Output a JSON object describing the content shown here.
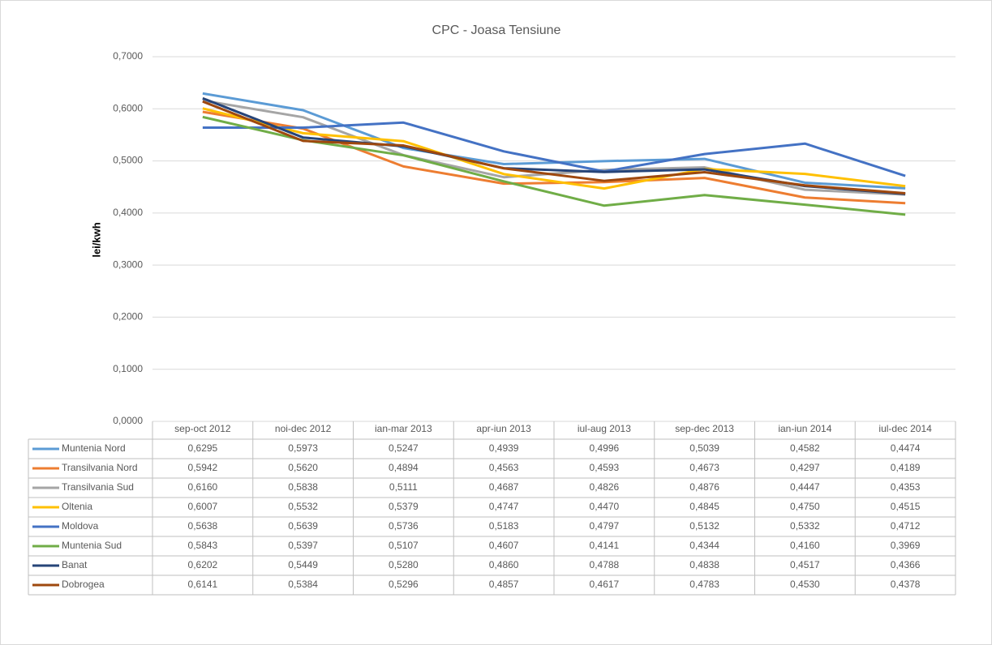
{
  "chart_data": {
    "type": "line",
    "title": "CPC - Joasa Tensiune",
    "y_label": "lei/kwh",
    "categories": [
      "sep-oct 2012",
      "noi-dec 2012",
      "ian-mar 2013",
      "apr-iun 2013",
      "iul-aug 2013",
      "sep-dec 2013",
      "ian-iun 2014",
      "iul-dec 2014"
    ],
    "ylim": [
      0,
      0.7
    ],
    "yticks": [
      {
        "value": 0,
        "label": "0,0000"
      },
      {
        "value": 0.1,
        "label": "0,1000"
      },
      {
        "value": 0.2,
        "label": "0,2000"
      },
      {
        "value": 0.3,
        "label": "0,3000"
      },
      {
        "value": 0.4,
        "label": "0,4000"
      },
      {
        "value": 0.5,
        "label": "0,5000"
      },
      {
        "value": 0.6,
        "label": "0,6000"
      },
      {
        "value": 0.7,
        "label": "0,7000"
      }
    ],
    "grid": true,
    "series": [
      {
        "name": "Muntenia Nord",
        "color": "#5b9bd5",
        "values": [
          0.6295,
          0.5973,
          0.5247,
          0.4939,
          0.4996,
          0.5039,
          0.4582,
          0.4474
        ],
        "value_labels": [
          "0,6295",
          "0,5973",
          "0,5247",
          "0,4939",
          "0,4996",
          "0,5039",
          "0,4582",
          "0,4474"
        ]
      },
      {
        "name": "Transilvania Nord",
        "color": "#ed7d31",
        "values": [
          0.5942,
          0.562,
          0.4894,
          0.4563,
          0.4593,
          0.4673,
          0.4297,
          0.4189
        ],
        "value_labels": [
          "0,5942",
          "0,5620",
          "0,4894",
          "0,4563",
          "0,4593",
          "0,4673",
          "0,4297",
          "0,4189"
        ]
      },
      {
        "name": "Transilvania Sud",
        "color": "#a5a5a5",
        "values": [
          0.616,
          0.5838,
          0.5111,
          0.4687,
          0.4826,
          0.4876,
          0.4447,
          0.4353
        ],
        "value_labels": [
          "0,6160",
          "0,5838",
          "0,5111",
          "0,4687",
          "0,4826",
          "0,4876",
          "0,4447",
          "0,4353"
        ]
      },
      {
        "name": "Oltenia",
        "color": "#ffc000",
        "values": [
          0.6007,
          0.5532,
          0.5379,
          0.4747,
          0.447,
          0.4845,
          0.475,
          0.4515
        ],
        "value_labels": [
          "0,6007",
          "0,5532",
          "0,5379",
          "0,4747",
          "0,4470",
          "0,4845",
          "0,4750",
          "0,4515"
        ]
      },
      {
        "name": "Moldova",
        "color": "#4472c4",
        "values": [
          0.5638,
          0.5639,
          0.5736,
          0.5183,
          0.4797,
          0.5132,
          0.5332,
          0.4712
        ],
        "value_labels": [
          "0,5638",
          "0,5639",
          "0,5736",
          "0,5183",
          "0,4797",
          "0,5132",
          "0,5332",
          "0,4712"
        ]
      },
      {
        "name": "Muntenia Sud",
        "color": "#70ad47",
        "values": [
          0.5843,
          0.5397,
          0.5107,
          0.4607,
          0.4141,
          0.4344,
          0.416,
          0.3969
        ],
        "value_labels": [
          "0,5843",
          "0,5397",
          "0,5107",
          "0,4607",
          "0,4141",
          "0,4344",
          "0,4160",
          "0,3969"
        ]
      },
      {
        "name": "Banat",
        "color": "#264478",
        "values": [
          0.6202,
          0.5449,
          0.528,
          0.486,
          0.4788,
          0.4838,
          0.4517,
          0.4366
        ],
        "value_labels": [
          "0,6202",
          "0,5449",
          "0,5280",
          "0,4860",
          "0,4788",
          "0,4838",
          "0,4517",
          "0,4366"
        ]
      },
      {
        "name": "Dobrogea",
        "color": "#9e480e",
        "values": [
          0.6141,
          0.5384,
          0.5296,
          0.4857,
          0.4617,
          0.4783,
          0.453,
          0.4378
        ],
        "value_labels": [
          "0,6141",
          "0,5384",
          "0,5296",
          "0,4857",
          "0,4617",
          "0,4783",
          "0,4530",
          "0,4378"
        ]
      }
    ]
  }
}
